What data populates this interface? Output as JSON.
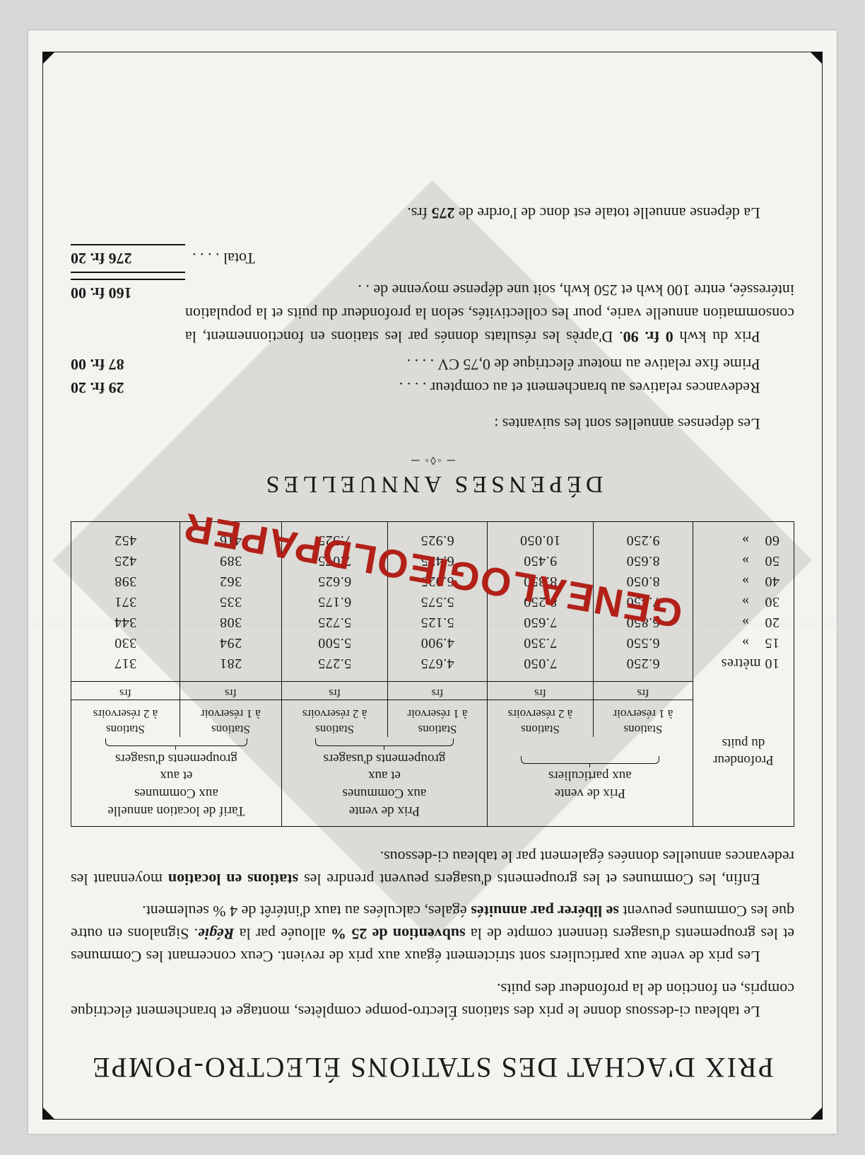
{
  "title": "PRIX D'ACHAT DES STATIONS ÉLECTRO-POMPE",
  "intro_paragraphs": [
    "Le tableau ci-dessous donne le prix des stations Électro-pompe complètes, montage et branchement électrique compris, en fonction de la profondeur des puits.",
    "Les prix de vente aux particuliers sont strictement égaux aux prix de revient. Ceux concernant les Communes et les groupements d'usagers tiennent compte de la <b>subvention de 25 %</b> allouée par la <b><i>Régie</i></b>. Signalons en outre que les Communes peuvent <b>se libérer par annuités</b> égales, calculées au taux d'intérêt de 4 % seulement.",
    "Enfin, les Communes et les groupements d'usagers peuvent prendre les <b>stations en location</b> moyennant les redevances annuelles données également par le tableau ci-dessous."
  ],
  "table": {
    "col_depth_header": "Profondeur\ndu puits",
    "group_headers": [
      "Prix de vente\naux particuliers",
      "Prix de vente\naux Communes\net aux\ngroupements d'usagers",
      "Tarif de location annuelle\naux Communes\net aux\ngroupements d'usagers"
    ],
    "sub_headers": [
      "Stations\nà 1 réservoir",
      "Stations\nà 2 réservoirs",
      "Stations\nà 1 réservoir",
      "Stations\nà 2 réservoirs",
      "Stations\nà 1 réservoir",
      "Stations\nà 2 réservoirs"
    ],
    "unit_label": "frs",
    "rows": [
      {
        "depth": "10 mètres",
        "v": [
          "6.250",
          "7.050",
          "4.675",
          "5.275",
          "281",
          "317"
        ]
      },
      {
        "depth": "15    »",
        "v": [
          "6.550",
          "7.350",
          "4.900",
          "5.500",
          "294",
          "330"
        ]
      },
      {
        "depth": "20    »",
        "v": [
          "6.850",
          "7.650",
          "5.125",
          "5.725",
          "308",
          "344"
        ]
      },
      {
        "depth": "30    »",
        "v": [
          "7.450",
          "8.250",
          "5.575",
          "6.175",
          "335",
          "371"
        ]
      },
      {
        "depth": "40    »",
        "v": [
          "8.050",
          "8.850",
          "6.025",
          "6.625",
          "362",
          "398"
        ]
      },
      {
        "depth": "50    »",
        "v": [
          "8.650",
          "9.450",
          "6.475",
          "7.075",
          "389",
          "425"
        ]
      },
      {
        "depth": "60    »",
        "v": [
          "9.250",
          "10.050",
          "6.925",
          "7.525",
          "416",
          "452"
        ]
      }
    ]
  },
  "expenses": {
    "title": "DÉPENSES ANNUELLES",
    "intro": "Les dépenses annuelles sont les suivantes :",
    "line1_label": "Redevances relatives au branchement et au compteur . . . .",
    "line1_amount": "29 fr. 20",
    "line2_label": "Prime fixe relative au moteur électrique de 0,75 CV . . . .",
    "line2_amount": "87 fr. 00",
    "para_text": "Prix du kwh <b>0 fr. 90</b>. D'après les résultats donnés par les stations en fonctionnement, la consommation annuelle varie, pour les collectivités, selon la profondeur du puits et la population intéressée, entre 100 kwh et 250 kwh, soit une dépense moyenne de . .",
    "para_amount": "160 fr. 00",
    "total_label": "Total . . . .",
    "total_amount": "276 fr. 20",
    "conclusion": "La dépense annuelle totale est donc de l'ordre de <b>275</b> frs."
  },
  "watermark": "GENEALOGIEOLDPAPER",
  "colors": {
    "paper": "#f4f3ef",
    "ink": "#1c1c1c",
    "watermark_red": "#b22018",
    "overlay_grey": "rgba(210,210,210,0.55)",
    "page_bg": "#d8d8d8"
  }
}
